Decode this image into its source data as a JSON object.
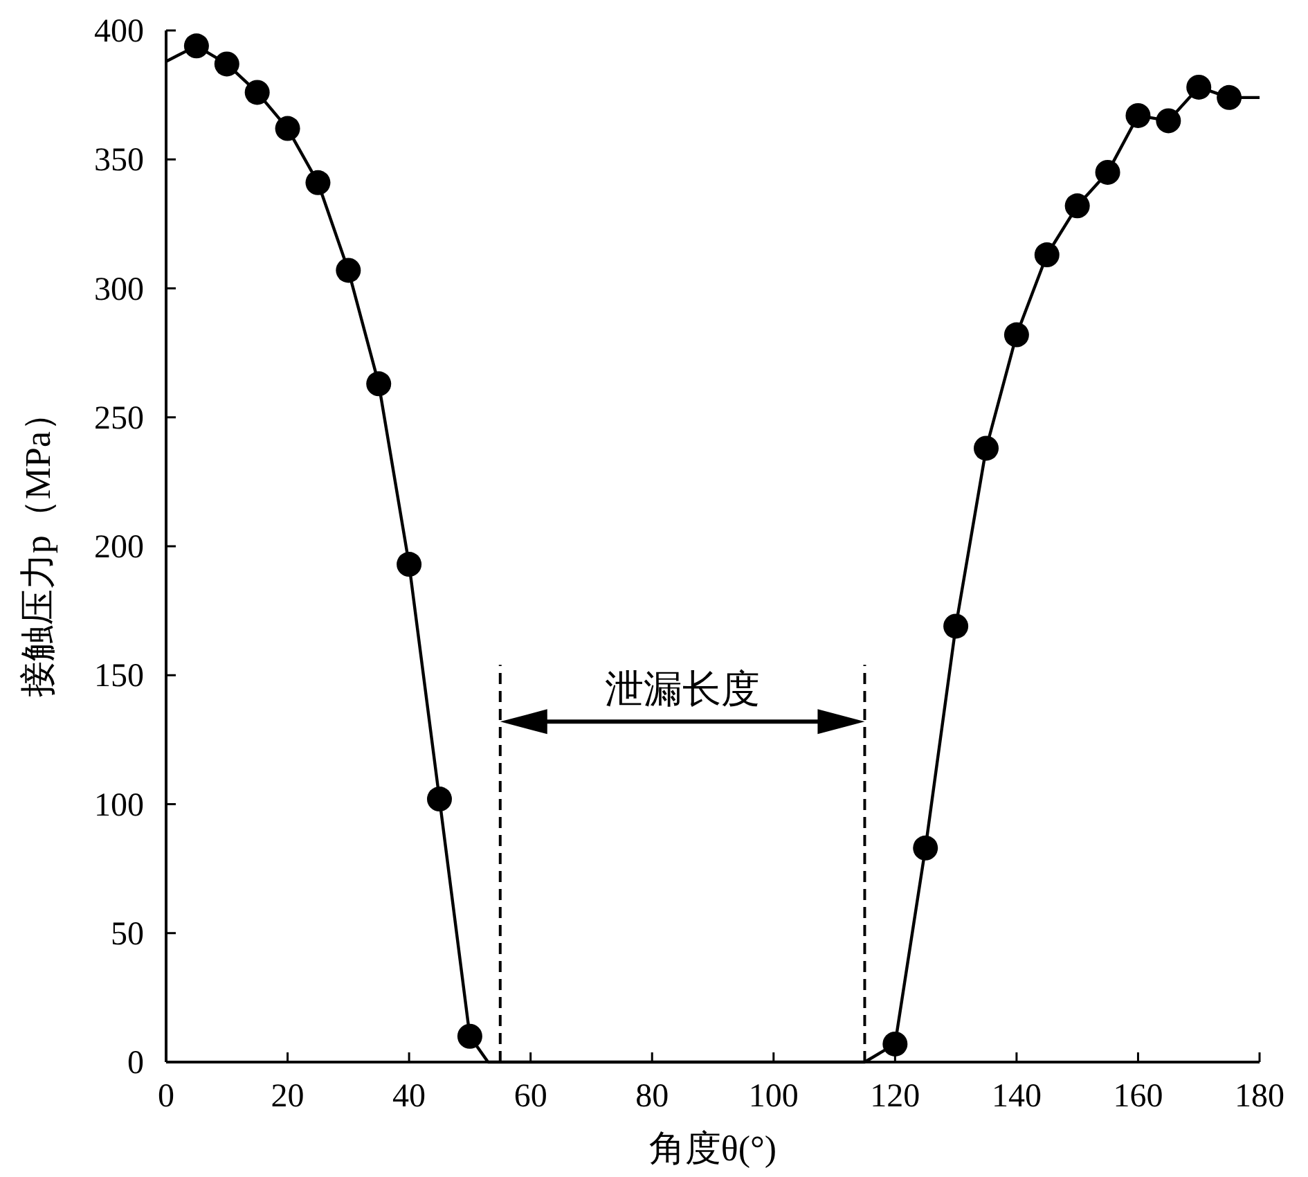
{
  "chart_data": {
    "type": "line",
    "xlabel": "角度θ(°)",
    "ylabel": "接触压力p（MPa）",
    "xlim": [
      0,
      180
    ],
    "xticks": [
      0,
      20,
      40,
      60,
      80,
      100,
      120,
      140,
      160,
      180
    ],
    "ylim": [
      0,
      400
    ],
    "yticks": [
      0,
      50,
      100,
      150,
      200,
      250,
      300,
      350,
      400
    ],
    "series": [
      {
        "type": "line",
        "color": "#000000",
        "marker": "none",
        "x": [
          0,
          5,
          10,
          15,
          20,
          25,
          30,
          35,
          40,
          45,
          50,
          53,
          115,
          120,
          125,
          130,
          135,
          140,
          145,
          150,
          155,
          160,
          165,
          170,
          175,
          180
        ],
        "values": [
          388,
          394,
          387,
          376,
          362,
          341,
          307,
          263,
          193,
          102,
          10,
          0,
          0,
          7,
          83,
          169,
          238,
          282,
          313,
          332,
          345,
          367,
          365,
          378,
          374,
          374
        ]
      },
      {
        "type": "scatter",
        "color": "#000000",
        "marker": "circle",
        "x": [
          5,
          10,
          15,
          20,
          25,
          30,
          35,
          40,
          45,
          50,
          120,
          125,
          130,
          135,
          140,
          145,
          150,
          155,
          160,
          165,
          170,
          175
        ],
        "values": [
          394,
          387,
          376,
          362,
          341,
          307,
          263,
          193,
          102,
          10,
          7,
          83,
          169,
          238,
          282,
          313,
          332,
          345,
          367,
          365,
          378,
          374
        ]
      }
    ],
    "ref_lines": [
      {
        "axis": "x",
        "value": 55,
        "line_style": "dashed",
        "color": "#000000"
      },
      {
        "axis": "x",
        "value": 115,
        "line_style": "dashed",
        "color": "#000000"
      }
    ],
    "annotations": [
      "泄漏长度"
    ]
  }
}
